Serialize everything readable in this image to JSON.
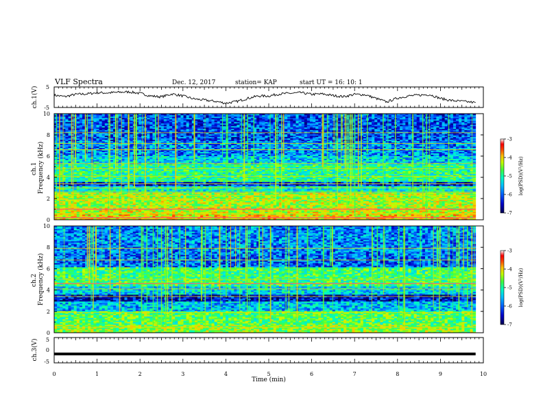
{
  "header": {
    "title": "VLF  Spectra",
    "date": "Dec. 12,  2017",
    "station": "station= KAP",
    "start": "start  UT  =   16: 10: 1"
  },
  "colors": {
    "trace": "#000000",
    "background": "#ffffff",
    "colormap": [
      "#000050",
      "#0000c8",
      "#0060ff",
      "#00c0ff",
      "#00ffc0",
      "#40ff40",
      "#c0ff00",
      "#ffc000",
      "#ff4000",
      "#ff0000",
      "#ff90b0",
      "#ffffff"
    ]
  },
  "chart_data": [
    {
      "type": "line",
      "name": "ch1-waveform",
      "ylabel": "ch.1(V)",
      "ylim": [
        -5,
        5
      ],
      "yticks": [
        "5",
        "-5"
      ],
      "xlim": [
        0,
        10
      ],
      "x": [
        0,
        0.25,
        0.5,
        0.75,
        1.0,
        1.25,
        1.5,
        1.75,
        2.0,
        2.25,
        2.5,
        2.75,
        3.0,
        3.25,
        3.5,
        3.75,
        4.0,
        4.25,
        4.5,
        4.75,
        5.0,
        5.25,
        5.5,
        5.75,
        6.0,
        6.25,
        6.5,
        6.75,
        7.0,
        7.25,
        7.5,
        7.75,
        8.0,
        8.25,
        8.5,
        8.75,
        9.0,
        9.25,
        9.5,
        9.82
      ],
      "y": [
        1.0,
        0.3,
        1.4,
        1.6,
        2.2,
        2.1,
        2.4,
        2.6,
        1.9,
        0.6,
        0.2,
        1.6,
        0.6,
        -0.8,
        -1.4,
        -2.0,
        -2.9,
        -2.1,
        -0.6,
        0.6,
        0.6,
        1.6,
        1.9,
        2.2,
        1.4,
        1.6,
        0.8,
        0.3,
        1.4,
        1.2,
        -0.6,
        -2.3,
        -0.4,
        0.6,
        1.0,
        1.3,
        -0.6,
        -1.6,
        -2.0,
        -2.6
      ]
    },
    {
      "type": "heatmap",
      "name": "ch1-spectrogram",
      "ylabel": "ch.1\nFrequency (kHz)",
      "ylim": [
        0,
        10
      ],
      "yticks": [
        "0",
        "2",
        "4",
        "6",
        "8",
        "10"
      ],
      "xlim": [
        0,
        9.82
      ],
      "colorbar": {
        "label": "log(PSD)(V²/Hz)",
        "range": [
          -7,
          -3
        ],
        "ticks": [
          "-3",
          "-4",
          "-5",
          "-6",
          "-7"
        ]
      },
      "band_levels_by_freq": [
        {
          "f": [
            0.0,
            0.5
          ],
          "level": -4.6
        },
        {
          "f": [
            0.5,
            1.2
          ],
          "level": -4.8
        },
        {
          "f": [
            1.2,
            2.6
          ],
          "level": -4.9
        },
        {
          "f": [
            2.6,
            3.2
          ],
          "level": -5.6
        },
        {
          "f": [
            3.2,
            3.6
          ],
          "level": -6.5
        },
        {
          "f": [
            3.6,
            5.2
          ],
          "level": -5.4
        },
        {
          "f": [
            5.2,
            6.0
          ],
          "level": -5.8
        },
        {
          "f": [
            6.0,
            7.4
          ],
          "level": -6.1
        },
        {
          "f": [
            7.4,
            10.0
          ],
          "level": -6.3
        }
      ],
      "lines_kHz": [
        0.2,
        0.6,
        1.0,
        1.9,
        2.3,
        2.6,
        3.0,
        3.4,
        4.1,
        4.8,
        5.3,
        6.6,
        7.2,
        8.2
      ],
      "strong_lines_kHz": [
        1.0,
        0.2
      ]
    },
    {
      "type": "heatmap",
      "name": "ch2-spectrogram",
      "ylabel": "ch.2\nFrequency (kHz)",
      "ylim": [
        0,
        10
      ],
      "yticks": [
        "0",
        "2",
        "4",
        "6",
        "8",
        "10"
      ],
      "xlim": [
        0,
        9.82
      ],
      "colorbar": {
        "label": "log(PSD)(V²/Hz)",
        "range": [
          -7,
          -3
        ],
        "ticks": [
          "-3",
          "-4",
          "-5",
          "-6",
          "-7"
        ]
      },
      "band_levels_by_freq": [
        {
          "f": [
            0.0,
            0.8
          ],
          "level": -5.0
        },
        {
          "f": [
            0.8,
            2.0
          ],
          "level": -5.2
        },
        {
          "f": [
            2.0,
            3.0
          ],
          "level": -5.9
        },
        {
          "f": [
            3.0,
            3.6
          ],
          "level": -6.6
        },
        {
          "f": [
            3.6,
            4.4
          ],
          "level": -5.8
        },
        {
          "f": [
            4.4,
            6.2
          ],
          "level": -5.3
        },
        {
          "f": [
            6.2,
            7.6
          ],
          "level": -6.2
        },
        {
          "f": [
            7.6,
            10.0
          ],
          "level": -6.1
        }
      ],
      "lines_kHz": [
        0.5,
        1.9,
        3.4,
        4.1,
        4.6,
        5.0,
        6.8,
        7.9
      ],
      "strong_lines_kHz": [
        4.6
      ]
    },
    {
      "type": "line",
      "name": "ch3-waveform",
      "ylabel": "ch.3(V)",
      "xlabel": "Time  (min)",
      "ylim": [
        -5,
        5
      ],
      "yticks": [
        "5",
        "0",
        "-5"
      ],
      "xlim": [
        0,
        10
      ],
      "xticks": [
        "0",
        "1",
        "2",
        "3",
        "4",
        "5",
        "6",
        "7",
        "8",
        "9",
        "10"
      ],
      "x": [
        0,
        9.82
      ],
      "y": [
        -1.5,
        -1.5
      ]
    }
  ]
}
